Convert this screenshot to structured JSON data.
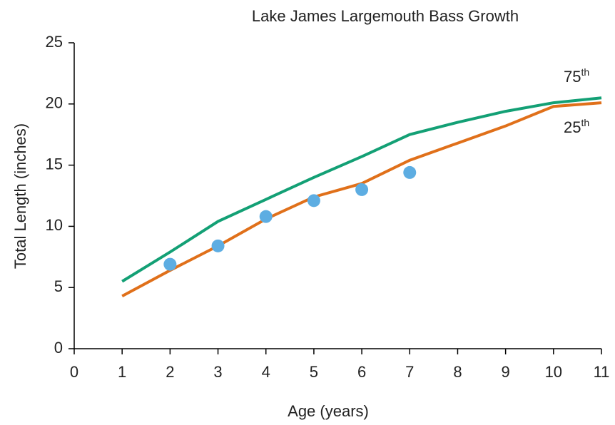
{
  "chart_data": {
    "type": "line",
    "title": "Lake James Largemouth Bass Growth",
    "xlabel": "Age (years)",
    "ylabel": "Total Length (inches)",
    "xlim": [
      0,
      11
    ],
    "xticks": [
      0,
      1,
      2,
      3,
      4,
      5,
      6,
      7,
      8,
      9,
      10,
      11
    ],
    "ylim": [
      0,
      25
    ],
    "yticks": [
      0,
      5,
      10,
      15,
      20,
      25
    ],
    "grid": false,
    "series": [
      {
        "label": [
          "75",
          "th"
        ],
        "color": "#13a075",
        "x": [
          1,
          2,
          3,
          4,
          5,
          6,
          7,
          8,
          9,
          10,
          11
        ],
        "values": [
          5.5,
          7.9,
          10.4,
          12.2,
          14.0,
          15.7,
          17.5,
          18.5,
          19.4,
          20.1,
          20.5
        ]
      },
      {
        "label": [
          "25",
          "th"
        ],
        "color": "#e0701a",
        "x": [
          1,
          2,
          3,
          4,
          5,
          6,
          7,
          8,
          9,
          10,
          11
        ],
        "values": [
          4.3,
          6.4,
          8.4,
          10.6,
          12.4,
          13.5,
          15.4,
          16.8,
          18.2,
          19.8,
          20.1
        ]
      },
      {
        "kind": "scatter",
        "color": "#5dade2",
        "x": [
          2,
          3,
          4,
          5,
          6,
          7
        ],
        "values": [
          6.9,
          8.4,
          10.8,
          12.1,
          13.0,
          14.4
        ]
      }
    ]
  }
}
